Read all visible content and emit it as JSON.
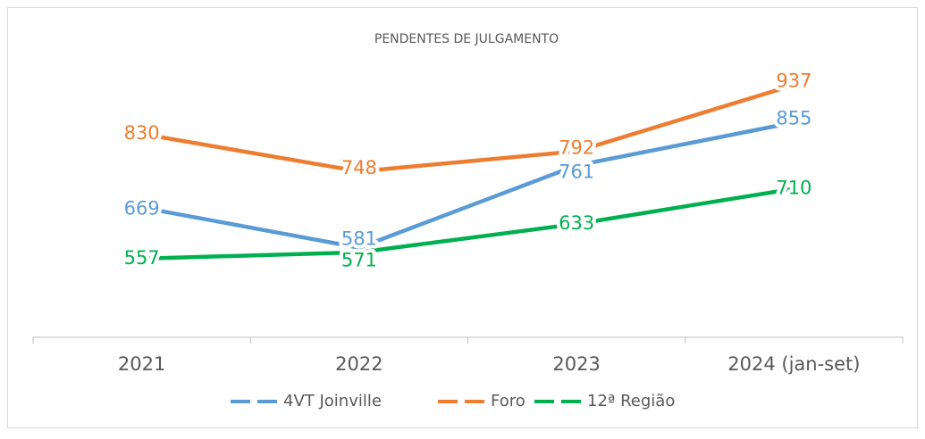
{
  "chart_data": {
    "type": "line",
    "title": "PENDENTES DE JULGAMENTO",
    "categories": [
      "2021",
      "2022",
      "2023",
      "2024 (jan-set)"
    ],
    "series": [
      {
        "name": "4VT Joinville",
        "color": "#5b9bd5",
        "values": [
          669,
          581,
          761,
          855
        ]
      },
      {
        "name": "Foro",
        "color": "#ed7d31",
        "values": [
          830,
          748,
          792,
          937
        ]
      },
      {
        "name": "12ª Região",
        "color": "#00b050",
        "values": [
          557,
          571,
          633,
          710
        ]
      }
    ],
    "ylim": [
      385,
      1000
    ],
    "legend": "bottom"
  }
}
